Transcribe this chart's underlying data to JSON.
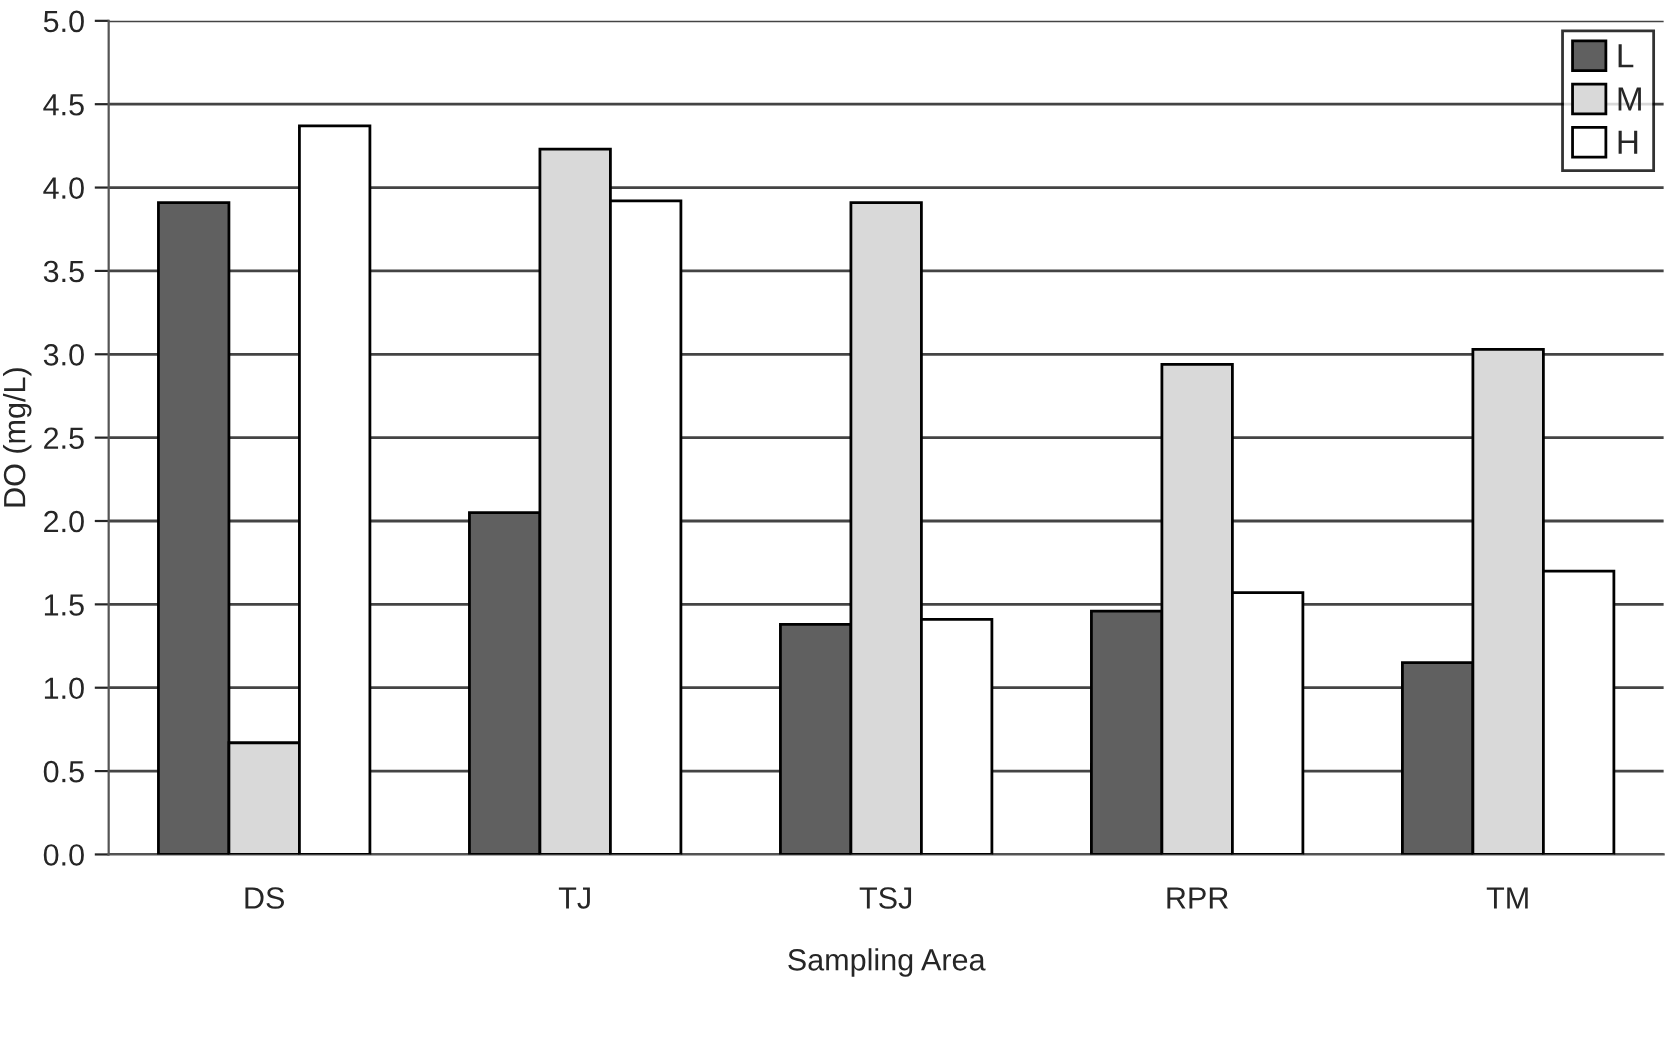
{
  "chart_data": {
    "type": "bar",
    "xlabel": "Sampling Area",
    "ylabel": "DO (mg/L)",
    "categories": [
      "DS",
      "TJ",
      "TSJ",
      "RPR",
      "TM"
    ],
    "series": [
      {
        "name": "L",
        "color": "#606060",
        "values": [
          3.91,
          2.05,
          1.38,
          1.46,
          1.15
        ]
      },
      {
        "name": "M",
        "color": "#d9d9d9",
        "values": [
          0.67,
          4.23,
          3.91,
          2.94,
          3.03
        ]
      },
      {
        "name": "H",
        "color": "#ffffff",
        "values": [
          4.37,
          3.92,
          1.41,
          1.57,
          1.7
        ]
      }
    ],
    "ylim": [
      0,
      5
    ],
    "yticks": [
      {
        "value": 0,
        "label": "0.0"
      },
      {
        "value": 0.5,
        "label": "0.5"
      },
      {
        "value": 1,
        "label": "1.0"
      },
      {
        "value": 1.5,
        "label": "1.5"
      },
      {
        "value": 2,
        "label": "2.0"
      },
      {
        "value": 2.5,
        "label": "2.5"
      },
      {
        "value": 3,
        "label": "3.0"
      },
      {
        "value": 3.5,
        "label": "3.5"
      },
      {
        "value": 4,
        "label": "4.0"
      },
      {
        "value": 4.5,
        "label": "4.5"
      },
      {
        "value": 5,
        "label": "5.0"
      }
    ],
    "grid": "y",
    "legend": "top right"
  }
}
